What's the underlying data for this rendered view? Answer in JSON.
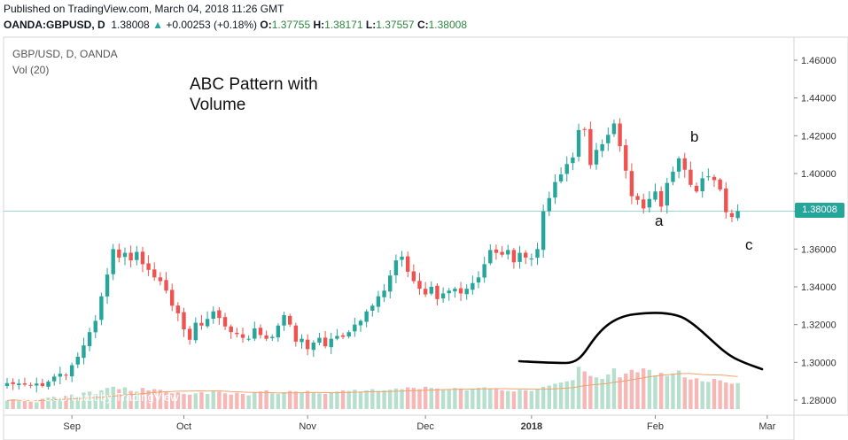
{
  "header": {
    "published": "Published on TradingView.com, March 04, 2018 11:26 GMT",
    "symbol": "OANDA:GBPUSD, D",
    "last": "1.38008",
    "change": "+0.00253 (+0.18%)",
    "o_label": "O:",
    "o": "1.37755",
    "h_label": "H:",
    "h": "1.38171",
    "l_label": "L:",
    "l": "1.37557",
    "c_label": "C:",
    "c": "1.38008"
  },
  "legend": {
    "series": "GBP/USD, D, OANDA",
    "volume": "Vol (20)"
  },
  "annotation": {
    "line1": "ABC Pattern with",
    "line2": "Volume"
  },
  "wave_labels": {
    "a": "a",
    "b": "b",
    "c": "c"
  },
  "watermark": "GBPUSD chart by TradingView",
  "price_tag": "1.38008",
  "colors": {
    "up": "#26a69a",
    "down": "#ef5350",
    "vol_up": "#b7dfcd",
    "vol_down": "#f6b7b6",
    "ma": "#f0a36b"
  },
  "chart_data": {
    "type": "candlestick",
    "title": "GBP/USD, D, OANDA",
    "ylim": [
      1.27,
      1.47
    ],
    "y_ticks": [
      "1.28000",
      "1.30000",
      "1.32000",
      "1.34000",
      "1.36000",
      "1.38000",
      "1.40000",
      "1.42000",
      "1.44000",
      "1.46000"
    ],
    "x_ticks": [
      "Sep",
      "Oct",
      "Nov",
      "Dec",
      "2018",
      "Feb",
      "Mar"
    ],
    "x_tick_index": [
      11,
      30,
      51,
      71,
      89,
      110,
      129
    ],
    "last_price": 1.38008,
    "closes": [
      1.289,
      1.2885,
      1.2888,
      1.2882,
      1.2878,
      1.2888,
      1.2875,
      1.2898,
      1.2925,
      1.294,
      1.293,
      1.2985,
      1.303,
      1.309,
      1.316,
      1.322,
      1.335,
      1.3465,
      1.36,
      1.3555,
      1.358,
      1.354,
      1.3585,
      1.352,
      1.349,
      1.345,
      1.343,
      1.338,
      1.33,
      1.326,
      1.3175,
      1.312,
      1.321,
      1.3195,
      1.323,
      1.327,
      1.3235,
      1.319,
      1.316,
      1.315,
      1.313,
      1.3125,
      1.318,
      1.3145,
      1.3125,
      1.3135,
      1.3195,
      1.325,
      1.32,
      1.311,
      1.3125,
      1.307,
      1.3105,
      1.313,
      1.3085,
      1.3125,
      1.314,
      1.3135,
      1.316,
      1.32,
      1.322,
      1.327,
      1.33,
      1.335,
      1.338,
      1.346,
      1.354,
      1.356,
      1.348,
      1.343,
      1.339,
      1.336,
      1.34,
      1.3335,
      1.3365,
      1.338,
      1.339,
      1.3365,
      1.339,
      1.342,
      1.345,
      1.352,
      1.3595,
      1.358,
      1.357,
      1.3595,
      1.353,
      1.358,
      1.3555,
      1.355,
      1.36,
      1.38,
      1.387,
      1.3955,
      1.3995,
      1.405,
      1.4085,
      1.423,
      1.4235,
      1.4045,
      1.4125,
      1.4155,
      1.4205,
      1.4265,
      1.4145,
      1.4015,
      1.388,
      1.386,
      1.3815,
      1.3865,
      1.3905,
      1.3825,
      1.395,
      1.401,
      1.408,
      1.402,
      1.394,
      1.3905,
      1.3975,
      1.3985,
      1.3965,
      1.3915,
      1.3795,
      1.377,
      1.3801
    ],
    "volume_rel": [
      0.28,
      0.32,
      0.26,
      0.3,
      0.25,
      0.22,
      0.34,
      0.38,
      0.42,
      0.36,
      0.44,
      0.48,
      0.4,
      0.55,
      0.58,
      0.5,
      0.62,
      0.7,
      0.74,
      0.66,
      0.72,
      0.6,
      0.58,
      0.7,
      0.62,
      0.66,
      0.64,
      0.58,
      0.52,
      0.55,
      0.5,
      0.48,
      0.52,
      0.56,
      0.5,
      0.62,
      0.58,
      0.52,
      0.48,
      0.54,
      0.5,
      0.45,
      0.55,
      0.58,
      0.62,
      0.52,
      0.5,
      0.56,
      0.6,
      0.58,
      0.54,
      0.6,
      0.56,
      0.52,
      0.5,
      0.55,
      0.58,
      0.62,
      0.6,
      0.64,
      0.58,
      0.62,
      0.66,
      0.6,
      0.62,
      0.64,
      0.68,
      0.66,
      0.72,
      0.7,
      0.66,
      0.74,
      0.7,
      0.68,
      0.64,
      0.66,
      0.7,
      0.68,
      0.62,
      0.66,
      0.7,
      0.72,
      0.68,
      0.66,
      0.62,
      0.6,
      0.58,
      0.64,
      0.62,
      0.6,
      0.66,
      0.74,
      0.78,
      0.84,
      0.88,
      0.92,
      0.96,
      1.4,
      1.25,
      1.1,
      1.05,
      1.0,
      1.15,
      1.35,
      1.05,
      1.18,
      1.3,
      1.22,
      1.35,
      1.3,
      1.12,
      1.2,
      1.1,
      1.18,
      1.28,
      1.05,
      0.98,
      1.02,
      0.92,
      0.9,
      1.0,
      0.95,
      0.88,
      0.84,
      0.86
    ]
  }
}
